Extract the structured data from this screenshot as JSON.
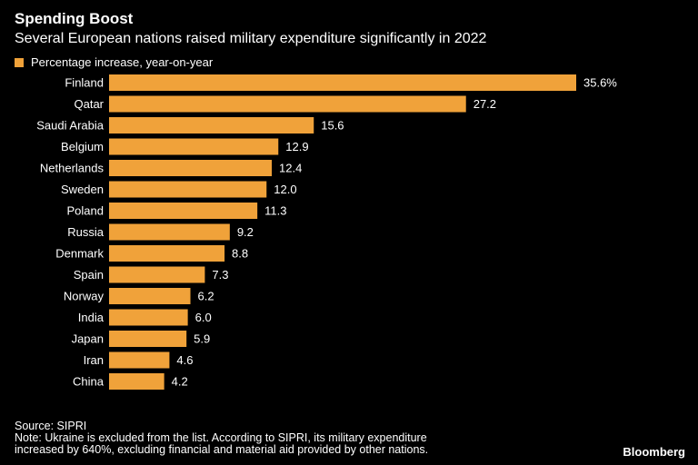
{
  "chart_data": {
    "type": "bar",
    "orientation": "horizontal",
    "title": "Spending Boost",
    "subtitle": "Several European nations raised military expenditure significantly in 2022",
    "series": [
      {
        "name": "Percentage increase, year-on-year",
        "color": "#f0a23a",
        "values": [
          35.6,
          27.2,
          15.6,
          12.9,
          12.4,
          12.0,
          11.3,
          9.2,
          8.8,
          7.3,
          6.2,
          6.0,
          5.9,
          4.6,
          4.2
        ],
        "labels": [
          "35.6%",
          "27.2",
          "15.6",
          "12.9",
          "12.4",
          "12.0",
          "11.3",
          "9.2",
          "8.8",
          "7.3",
          "6.2",
          "6.0",
          "5.9",
          "4.6",
          "4.2"
        ]
      }
    ],
    "categories": [
      "Finland",
      "Qatar",
      "Saudi Arabia",
      "Belgium",
      "Netherlands",
      "Sweden",
      "Poland",
      "Russia",
      "Denmark",
      "Spain",
      "Norway",
      "India",
      "Japan",
      "Iran",
      "China"
    ],
    "xlim": [
      0,
      35.6
    ],
    "grid": false,
    "legend_position": "top-left"
  },
  "footer": {
    "source": "Source: SIPRI",
    "note_line1": "Note: Ukraine is excluded from the list. According to SIPRI, its military expenditure",
    "note_line2": "increased by 640%, excluding financial and material aid provided by other nations."
  },
  "brand": "Bloomberg",
  "colors": {
    "background": "#000000",
    "bar": "#f0a23a",
    "text": "#ffffff"
  }
}
